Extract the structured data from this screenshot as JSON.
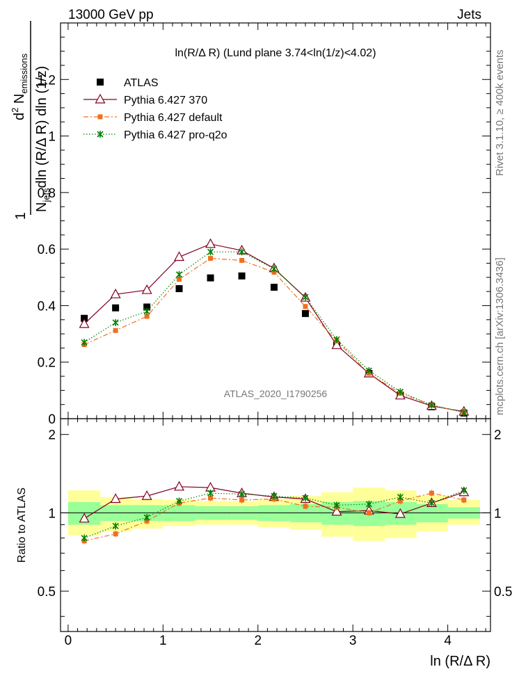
{
  "header": {
    "left": "13000 GeV pp",
    "right": "Jets"
  },
  "side_labels": {
    "rivet": "Rivet 3.1.10, ≥ 400k events",
    "mcplots": "mcplots.cern.ch [arXiv:1306.3436]"
  },
  "chart_data": {
    "type": "line",
    "title": "ln(R/Δ R) (Lund plane 3.74<ln(1/z)<4.02)",
    "watermark": "ATLAS_2020_I1790256",
    "xlabel": "ln (R/Δ R)",
    "ylabel": "1/N_jets d²N_emissions / dln(R/ΔR) dln(1/z)",
    "ylabel_parts": {
      "one": "1",
      "njets": "N",
      "njets_sub": "jets",
      "dln_rdr": "dln (R/Δ R)",
      "d2": "d",
      "d2_sup": "2",
      "n": " N",
      "emissions_sub": "emissions",
      "dln_z": " dln (1/z)"
    },
    "ratio_ylabel": "Ratio to ATLAS",
    "xlim": [
      -0.08,
      4.45
    ],
    "main_ylim": [
      0,
      1.4
    ],
    "ratio_ylim": [
      0.35,
      2.3
    ],
    "x_ticks": [
      0,
      1,
      2,
      3,
      4
    ],
    "x_tick_labels": [
      "0",
      "1",
      "2",
      "3",
      "4"
    ],
    "main_y_ticks": [
      0,
      0.2,
      0.4,
      0.6,
      0.8,
      1,
      1.2
    ],
    "main_y_tick_labels": [
      "0",
      "0.2",
      "0.4",
      "0.6",
      "0.8",
      "1",
      "1.2"
    ],
    "ratio_y_ticks": [
      0.5,
      1,
      2
    ],
    "ratio_y_tick_labels": [
      "0.5",
      "1",
      "2"
    ],
    "x": [
      0.17,
      0.5,
      0.83,
      1.17,
      1.5,
      1.83,
      2.17,
      2.5,
      2.83,
      3.17,
      3.5,
      3.83,
      4.17
    ],
    "bin_edges": [
      0.0,
      0.34,
      0.67,
      1.0,
      1.34,
      1.67,
      2.0,
      2.34,
      2.67,
      3.0,
      3.34,
      3.67,
      4.0,
      4.34
    ],
    "legend_position": "top-left",
    "series": [
      {
        "name": "ATLAS",
        "color": "#000000",
        "marker": "square",
        "values": [
          0.355,
          0.392,
          0.395,
          0.46,
          0.498,
          0.505,
          0.465,
          0.372,
          0.26,
          0.16,
          0.083,
          0.042,
          0.02
        ]
      },
      {
        "name": "Pythia 6.427 370",
        "color": "#800020",
        "marker": "open-triangle",
        "line": "solid",
        "values": [
          0.335,
          0.44,
          0.455,
          0.572,
          0.618,
          0.595,
          0.532,
          0.428,
          0.26,
          0.16,
          0.082,
          0.045,
          0.025
        ],
        "ratio": [
          0.95,
          1.13,
          1.16,
          1.26,
          1.25,
          1.19,
          1.15,
          1.13,
          1.01,
          1.02,
          0.99,
          1.09,
          1.2
        ]
      },
      {
        "name": "Pythia 6.427 default",
        "color": "#f07020",
        "marker": "filled-square",
        "line": "dash-dot",
        "values": [
          0.262,
          0.312,
          0.362,
          0.493,
          0.567,
          0.56,
          0.518,
          0.397,
          0.275,
          0.16,
          0.09,
          0.048,
          0.022
        ],
        "ratio": [
          0.78,
          0.83,
          0.93,
          1.09,
          1.14,
          1.12,
          1.13,
          1.06,
          1.05,
          1.0,
          1.11,
          1.19,
          1.12
        ]
      },
      {
        "name": "Pythia 6.427 pro-q2o",
        "color": "#008000",
        "marker": "star",
        "line": "dotted",
        "values": [
          0.27,
          0.34,
          0.38,
          0.51,
          0.59,
          0.59,
          0.53,
          0.43,
          0.28,
          0.17,
          0.095,
          0.048,
          0.022
        ],
        "ratio": [
          0.8,
          0.89,
          0.96,
          1.11,
          1.19,
          1.18,
          1.16,
          1.14,
          1.07,
          1.08,
          1.15,
          1.09,
          1.22
        ]
      }
    ],
    "ratio_band_inner": [
      [
        0.9,
        1.1
      ],
      [
        0.93,
        1.07
      ],
      [
        0.93,
        1.07
      ],
      [
        0.93,
        1.07
      ],
      [
        0.94,
        1.06
      ],
      [
        0.94,
        1.06
      ],
      [
        0.93,
        1.07
      ],
      [
        0.92,
        1.08
      ],
      [
        0.9,
        1.1
      ],
      [
        0.89,
        1.11
      ],
      [
        0.9,
        1.1
      ],
      [
        0.92,
        1.08
      ],
      [
        0.95,
        1.05
      ]
    ],
    "ratio_band_outer": [
      [
        0.82,
        1.22
      ],
      [
        0.85,
        1.15
      ],
      [
        0.87,
        1.13
      ],
      [
        0.89,
        1.12
      ],
      [
        0.9,
        1.11
      ],
      [
        0.9,
        1.11
      ],
      [
        0.88,
        1.13
      ],
      [
        0.86,
        1.16
      ],
      [
        0.81,
        1.2
      ],
      [
        0.78,
        1.25
      ],
      [
        0.8,
        1.22
      ],
      [
        0.85,
        1.17
      ],
      [
        0.9,
        1.12
      ]
    ]
  }
}
